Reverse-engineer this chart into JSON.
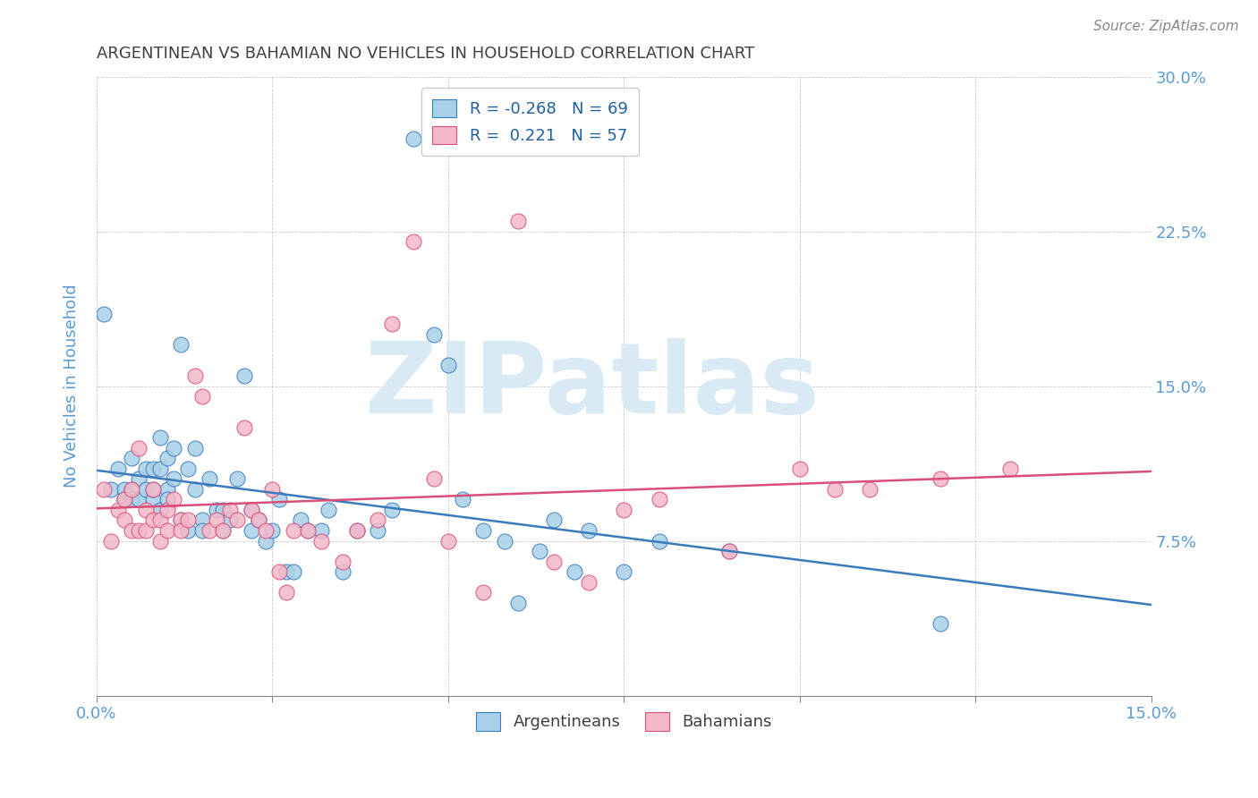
{
  "title": "ARGENTINEAN VS BAHAMIAN NO VEHICLES IN HOUSEHOLD CORRELATION CHART",
  "source": "Source: ZipAtlas.com",
  "ylabel_label": "No Vehicles in Household",
  "x_min": 0.0,
  "x_max": 0.15,
  "y_min": 0.0,
  "y_max": 0.3,
  "x_ticks": [
    0.0,
    0.025,
    0.05,
    0.075,
    0.1,
    0.125,
    0.15
  ],
  "x_tick_labels_show": [
    "0.0%",
    "",
    "",
    "",
    "",
    "",
    "15.0%"
  ],
  "y_ticks": [
    0.0,
    0.075,
    0.15,
    0.225,
    0.3
  ],
  "y_tick_labels": [
    "",
    "7.5%",
    "15.0%",
    "22.5%",
    "30.0%"
  ],
  "legend_label1": "Argentineans",
  "legend_label2": "Bahamians",
  "legend_r1": "R = -0.268",
  "legend_n1": "N = 69",
  "legend_r2": "R =  0.221",
  "legend_n2": "N = 57",
  "color_blue": "#a8d0e8",
  "color_pink": "#f4b8c8",
  "line_color_blue": "#3a7abf",
  "line_color_pink": "#d94f7a",
  "argentineans_x": [
    0.001,
    0.002,
    0.003,
    0.004,
    0.004,
    0.005,
    0.005,
    0.005,
    0.006,
    0.006,
    0.007,
    0.007,
    0.008,
    0.008,
    0.008,
    0.009,
    0.009,
    0.009,
    0.01,
    0.01,
    0.01,
    0.011,
    0.011,
    0.012,
    0.012,
    0.013,
    0.013,
    0.014,
    0.014,
    0.015,
    0.015,
    0.016,
    0.017,
    0.018,
    0.018,
    0.019,
    0.02,
    0.021,
    0.022,
    0.022,
    0.023,
    0.024,
    0.025,
    0.026,
    0.027,
    0.028,
    0.029,
    0.03,
    0.032,
    0.033,
    0.035,
    0.037,
    0.04,
    0.042,
    0.045,
    0.048,
    0.05,
    0.052,
    0.055,
    0.058,
    0.06,
    0.063,
    0.065,
    0.068,
    0.07,
    0.075,
    0.08,
    0.09,
    0.12
  ],
  "argentineans_y": [
    0.185,
    0.1,
    0.11,
    0.1,
    0.095,
    0.115,
    0.1,
    0.095,
    0.105,
    0.095,
    0.11,
    0.1,
    0.11,
    0.095,
    0.1,
    0.125,
    0.11,
    0.09,
    0.115,
    0.1,
    0.095,
    0.12,
    0.105,
    0.17,
    0.085,
    0.11,
    0.08,
    0.12,
    0.1,
    0.085,
    0.08,
    0.105,
    0.09,
    0.09,
    0.08,
    0.085,
    0.105,
    0.155,
    0.09,
    0.08,
    0.085,
    0.075,
    0.08,
    0.095,
    0.06,
    0.06,
    0.085,
    0.08,
    0.08,
    0.09,
    0.06,
    0.08,
    0.08,
    0.09,
    0.27,
    0.175,
    0.16,
    0.095,
    0.08,
    0.075,
    0.045,
    0.07,
    0.085,
    0.06,
    0.08,
    0.06,
    0.075,
    0.07,
    0.035
  ],
  "bahamians_x": [
    0.001,
    0.002,
    0.003,
    0.004,
    0.004,
    0.005,
    0.005,
    0.006,
    0.006,
    0.007,
    0.007,
    0.008,
    0.008,
    0.009,
    0.009,
    0.01,
    0.01,
    0.011,
    0.012,
    0.012,
    0.013,
    0.014,
    0.015,
    0.016,
    0.017,
    0.018,
    0.019,
    0.02,
    0.021,
    0.022,
    0.023,
    0.024,
    0.025,
    0.026,
    0.027,
    0.028,
    0.03,
    0.032,
    0.035,
    0.037,
    0.04,
    0.042,
    0.045,
    0.048,
    0.05,
    0.055,
    0.06,
    0.065,
    0.07,
    0.075,
    0.08,
    0.09,
    0.1,
    0.105,
    0.11,
    0.12,
    0.13
  ],
  "bahamians_y": [
    0.1,
    0.075,
    0.09,
    0.095,
    0.085,
    0.1,
    0.08,
    0.12,
    0.08,
    0.08,
    0.09,
    0.1,
    0.085,
    0.085,
    0.075,
    0.08,
    0.09,
    0.095,
    0.085,
    0.08,
    0.085,
    0.155,
    0.145,
    0.08,
    0.085,
    0.08,
    0.09,
    0.085,
    0.13,
    0.09,
    0.085,
    0.08,
    0.1,
    0.06,
    0.05,
    0.08,
    0.08,
    0.075,
    0.065,
    0.08,
    0.085,
    0.18,
    0.22,
    0.105,
    0.075,
    0.05,
    0.23,
    0.065,
    0.055,
    0.09,
    0.095,
    0.07,
    0.11,
    0.1,
    0.1,
    0.105,
    0.11
  ],
  "background_color": "#ffffff",
  "grid_color": "#c8c8c8",
  "title_color": "#404040",
  "tick_color": "#5b9bd5",
  "watermark_text": "ZIPatlas",
  "watermark_color": "#daeaf5",
  "legend_r_color": "#2060a0",
  "legend_n_color": "#2060a0"
}
